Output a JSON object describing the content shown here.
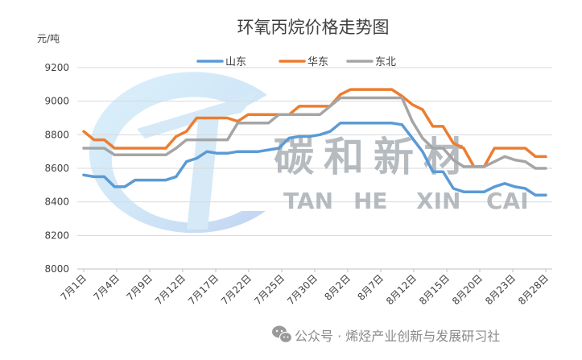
{
  "chart_data": {
    "type": "line",
    "title": "环氧丙烷价格走势图",
    "ylabel": "元/吨",
    "ylim": [
      8000,
      9200
    ],
    "yticks": [
      8000,
      8200,
      8400,
      8600,
      8800,
      9000,
      9200
    ],
    "grid": true,
    "legend_position": "top",
    "x_tick_labels": [
      "7月1日",
      "7月4日",
      "7月9日",
      "7月12日",
      "7月17日",
      "7月22日",
      "7月25日",
      "7月30日",
      "8月2日",
      "8月7日",
      "8月12日",
      "8月15日",
      "8月20日",
      "8月23日",
      "8月28日"
    ],
    "series": [
      {
        "name": "山东",
        "color": "#5b9bd5",
        "values": [
          8560,
          8550,
          8550,
          8490,
          8490,
          8530,
          8530,
          8530,
          8530,
          8550,
          8640,
          8660,
          8700,
          8690,
          8690,
          8700,
          8700,
          8700,
          8710,
          8720,
          8780,
          8790,
          8790,
          8800,
          8820,
          8870,
          8870,
          8870,
          8870,
          8870,
          8870,
          8860,
          8780,
          8700,
          8580,
          8580,
          8480,
          8460,
          8460,
          8460,
          8490,
          8510,
          8490,
          8480,
          8440,
          8440
        ]
      },
      {
        "name": "华东",
        "color": "#ed7d31",
        "values": [
          8820,
          8770,
          8770,
          8720,
          8720,
          8720,
          8720,
          8720,
          8720,
          8790,
          8820,
          8900,
          8900,
          8900,
          8900,
          8880,
          8920,
          8920,
          8920,
          8920,
          8920,
          8970,
          8970,
          8970,
          8970,
          9040,
          9070,
          9070,
          9070,
          9070,
          9070,
          9030,
          8980,
          8950,
          8850,
          8850,
          8750,
          8720,
          8610,
          8610,
          8720,
          8720,
          8720,
          8720,
          8670,
          8670
        ]
      },
      {
        "name": "东北",
        "color": "#a5a5a5",
        "values": [
          8720,
          8720,
          8720,
          8680,
          8680,
          8680,
          8680,
          8680,
          8680,
          8720,
          8770,
          8770,
          8770,
          8770,
          8770,
          8870,
          8870,
          8870,
          8870,
          8920,
          8920,
          8920,
          8920,
          8920,
          8970,
          9020,
          9020,
          9020,
          9020,
          9020,
          9020,
          9020,
          8880,
          8780,
          8720,
          8720,
          8650,
          8610,
          8610,
          8610,
          8640,
          8670,
          8650,
          8640,
          8600,
          8600
        ]
      }
    ]
  },
  "watermark": {
    "cn": "碳和新材",
    "en": [
      "TAN",
      "HE",
      "XIN",
      "CAI"
    ]
  },
  "footer": {
    "text": "公众号 · 烯烃产业创新与发展研习社",
    "icon": "wechat-icon"
  }
}
